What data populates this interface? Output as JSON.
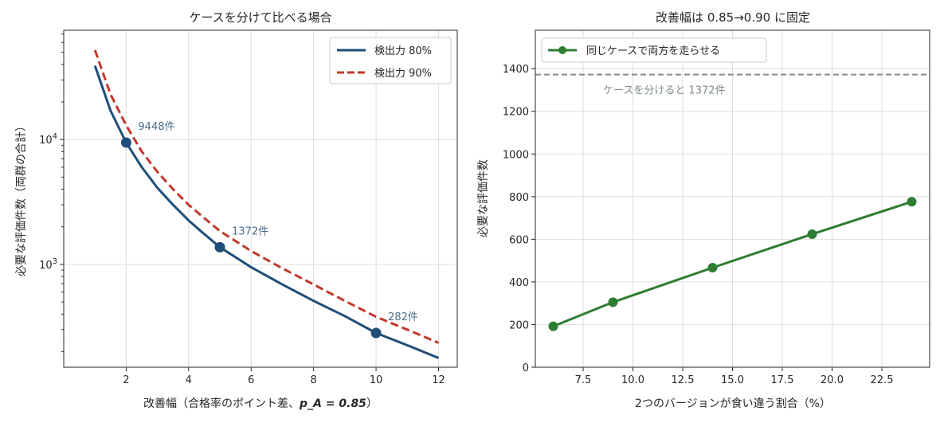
{
  "chart_data": [
    {
      "type": "line",
      "title": "ケースを分けて比べる場合",
      "xlabel": "改善幅（合格率のポイント差、",
      "xlabel_math": "p_A = 0.85",
      "xlabel_close": "）",
      "ylabel": "必要な評価件数（両群の合計）",
      "yscale": "log",
      "xlim": [
        0,
        12.6
      ],
      "ylim": [
        150,
        75000
      ],
      "grid": true,
      "legend": "top-right",
      "x_ticks": [
        2,
        4,
        6,
        8,
        10,
        12
      ],
      "x_tick_labels": [
        "2",
        "4",
        "6",
        "8",
        "10",
        "12"
      ],
      "y_ticks": [
        1000,
        10000
      ],
      "y_tick_labels": [
        {
          "base": "10",
          "exp": "3"
        },
        {
          "base": "10",
          "exp": "4"
        }
      ],
      "series": [
        {
          "name": "検出力 80%",
          "color": "#1f4e79",
          "style": "solid",
          "x": [
            1,
            1.5,
            2,
            2.5,
            3,
            3.5,
            4,
            4.5,
            5,
            6,
            7,
            8,
            9,
            10,
            11,
            12
          ],
          "values": [
            39000,
            17000,
            9448,
            6000,
            4100,
            3000,
            2250,
            1750,
            1372,
            950,
            690,
            510,
            385,
            282,
            225,
            178
          ]
        },
        {
          "name": "検出力 90%",
          "color": "#c0392b",
          "style": "dashed",
          "x": [
            1,
            1.5,
            2,
            2.5,
            3,
            3.5,
            4,
            4.5,
            5,
            6,
            7,
            8,
            9,
            10,
            11,
            12
          ],
          "values": [
            52000,
            23000,
            13000,
            8000,
            5500,
            4000,
            3000,
            2350,
            1850,
            1280,
            930,
            690,
            510,
            380,
            300,
            235
          ]
        }
      ],
      "markers": [
        {
          "x": 2,
          "y": 9448,
          "label": "9448件"
        },
        {
          "x": 5,
          "y": 1372,
          "label": "1372件"
        },
        {
          "x": 10,
          "y": 282,
          "label": "282件"
        }
      ],
      "annotation_color": "#4a6c8c"
    },
    {
      "type": "line",
      "title": "改善幅は 0.85→0.90 に固定",
      "xlabel": "2つのバージョンが食い違う割合（%）",
      "ylabel": "必要な評価件数",
      "xlim": [
        5.1,
        24.9
      ],
      "ylim": [
        0,
        1580
      ],
      "grid": true,
      "legend": "top-left",
      "x_ticks": [
        7.5,
        10,
        12.5,
        15,
        17.5,
        20,
        22.5
      ],
      "x_tick_labels": [
        "7.5",
        "10.0",
        "12.5",
        "15.0",
        "17.5",
        "20.0",
        "22.5"
      ],
      "y_ticks": [
        0,
        200,
        400,
        600,
        800,
        1000,
        1200,
        1400
      ],
      "y_tick_labels": [
        "0",
        "200",
        "400",
        "600",
        "800",
        "1000",
        "1200",
        "1400"
      ],
      "series": [
        {
          "name": "同じケースで両方を走らせる",
          "color": "#2e7d32",
          "style": "solid",
          "x": [
            6,
            9,
            14,
            19,
            24
          ],
          "values": [
            192,
            305,
            467,
            624,
            776
          ]
        }
      ],
      "reference_line": {
        "y": 1372,
        "label": "ケースを分けると 1372件",
        "color": "#7f8c8d"
      }
    }
  ]
}
